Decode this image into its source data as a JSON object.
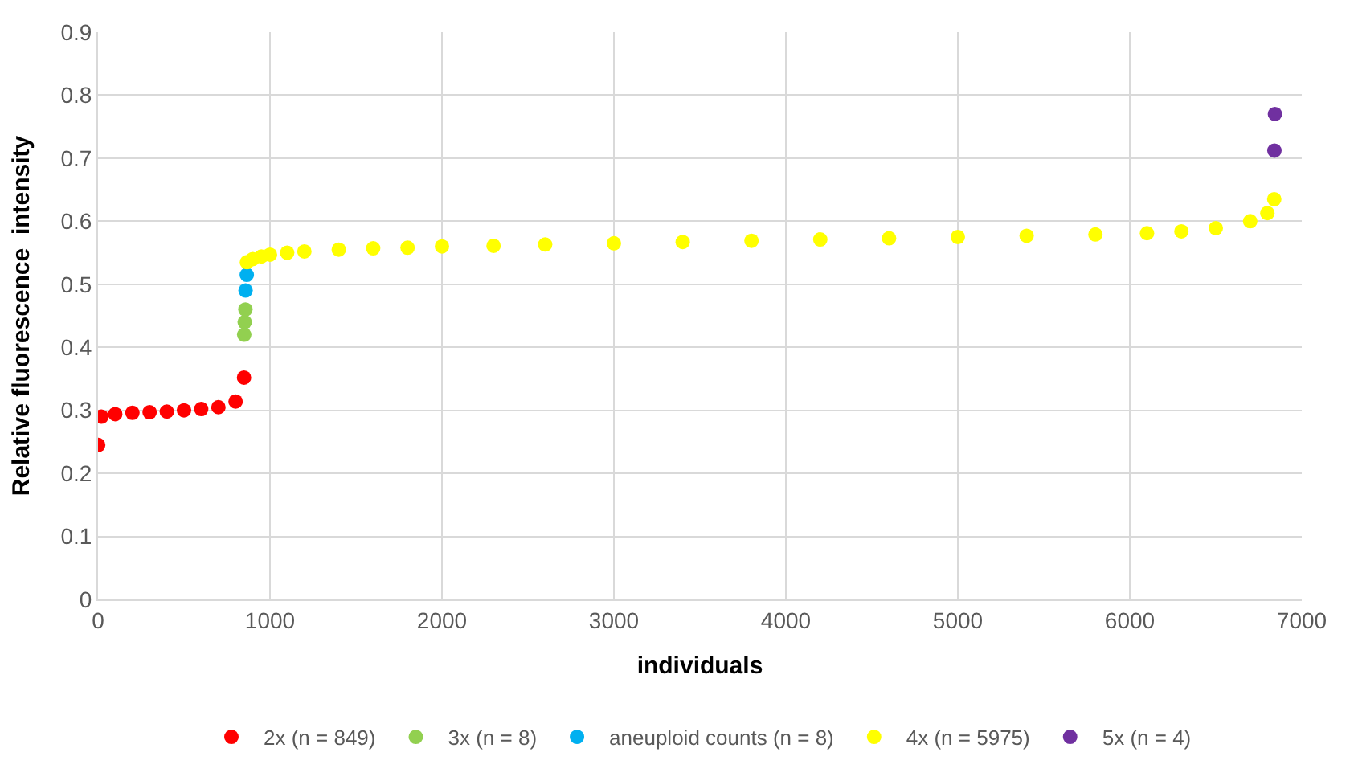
{
  "chart_data": {
    "type": "scatter",
    "xlabel": "individuals",
    "ylabel": "Relative fluorescence  intensity",
    "xlim": [
      0,
      7000
    ],
    "xticks": [
      0,
      1000,
      2000,
      3000,
      4000,
      5000,
      6000,
      7000
    ],
    "ylim": [
      0,
      0.9
    ],
    "yticks": [
      0,
      0.1,
      0.2,
      0.3,
      0.4,
      0.5,
      0.6,
      0.7,
      0.8,
      0.9
    ],
    "grid": true,
    "legend": "bottom",
    "marker": "circle",
    "series": [
      {
        "name": "2x (n = 849)",
        "color": "#ff0000",
        "x": [
          1,
          20,
          100,
          200,
          300,
          400,
          500,
          600,
          700,
          800,
          849
        ],
        "values": [
          0.245,
          0.29,
          0.294,
          0.296,
          0.297,
          0.298,
          0.3,
          0.302,
          0.305,
          0.314,
          0.352
        ]
      },
      {
        "name": "3x (n = 8)",
        "color": "#92d050",
        "x": [
          850,
          853,
          857
        ],
        "values": [
          0.42,
          0.44,
          0.46
        ]
      },
      {
        "name": "aneuploid counts (n = 8)",
        "color": "#00b0f0",
        "x": [
          858,
          865
        ],
        "values": [
          0.49,
          0.515
        ]
      },
      {
        "name": "4x (n = 5975)",
        "color": "#ffff00",
        "x": [
          866,
          900,
          950,
          1000,
          1100,
          1200,
          1400,
          1600,
          1800,
          2000,
          2300,
          2600,
          3000,
          3400,
          3800,
          4200,
          4600,
          5000,
          5400,
          5800,
          6100,
          6300,
          6500,
          6700,
          6800,
          6840
        ],
        "values": [
          0.535,
          0.54,
          0.544,
          0.547,
          0.55,
          0.552,
          0.555,
          0.557,
          0.558,
          0.56,
          0.561,
          0.563,
          0.565,
          0.567,
          0.569,
          0.571,
          0.573,
          0.575,
          0.577,
          0.579,
          0.581,
          0.584,
          0.589,
          0.6,
          0.613,
          0.635
        ]
      },
      {
        "name": "5x (n = 4)",
        "color": "#7030a0",
        "x": [
          6841,
          6844
        ],
        "values": [
          0.712,
          0.77
        ]
      }
    ]
  }
}
